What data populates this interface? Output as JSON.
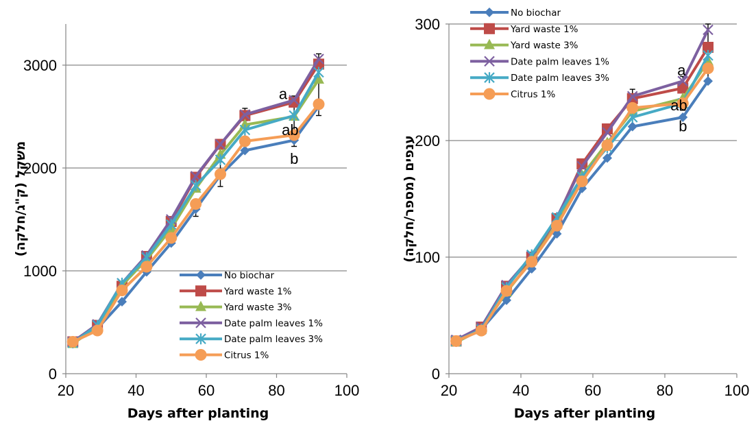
{
  "colors": {
    "No biochar": "#4a7ebb",
    "Yard waste 1%": "#be4b48",
    "Yard waste 3%": "#98b954",
    "Date palm leaves 1%": "#7d60a0",
    "Date palm leaves 3%": "#46aac5",
    "Citrus 1%": "#f59d56"
  },
  "chart_data": [
    {
      "type": "line",
      "title": "",
      "xlabel": "Days after planting",
      "ylabel": "משקל (ק\"ג/חלקה)",
      "xlim": [
        20,
        100
      ],
      "ylim": [
        0,
        3400
      ],
      "xticks": [
        "20",
        "40",
        "60",
        "80",
        "100"
      ],
      "yticks": [
        "0",
        "1000",
        "2000",
        "3000"
      ],
      "grid": "horizontal major gridlines",
      "legend_position": "bottom-right",
      "x": [
        22,
        29,
        36,
        43,
        50,
        57,
        64,
        71,
        85,
        92
      ],
      "series": [
        {
          "name": "No biochar",
          "marker": "diamond",
          "values": [
            300,
            440,
            700,
            990,
            1270,
            1600,
            1930,
            2170,
            2270,
            2600
          ]
        },
        {
          "name": "Yard waste 1%",
          "marker": "square",
          "values": [
            310,
            470,
            850,
            1140,
            1480,
            1910,
            2230,
            2510,
            2640,
            3010
          ]
        },
        {
          "name": "Yard waste 3%",
          "marker": "triangle",
          "values": [
            290,
            460,
            860,
            1110,
            1410,
            1800,
            2130,
            2420,
            2500,
            2860
          ]
        },
        {
          "name": "Date palm leaves 1%",
          "marker": "x",
          "values": [
            310,
            480,
            880,
            1150,
            1500,
            1920,
            2230,
            2520,
            2660,
            3060
          ]
        },
        {
          "name": "Date palm leaves 3%",
          "marker": "star",
          "values": [
            300,
            470,
            880,
            1130,
            1450,
            1830,
            2080,
            2370,
            2510,
            2930
          ]
        },
        {
          "name": "Citrus 1%",
          "marker": "circle",
          "values": [
            310,
            420,
            810,
            1040,
            1320,
            1650,
            1940,
            2260,
            2320,
            2620
          ]
        }
      ],
      "error_bars": [
        {
          "x": 57,
          "low": 1530,
          "high": 1670
        },
        {
          "x": 64,
          "low": 1820,
          "high": 2060
        },
        {
          "x": 71,
          "low": 2460,
          "high": 2580
        },
        {
          "x": 85,
          "low": 2210,
          "high": 2700
        },
        {
          "x": 92,
          "low": 2510,
          "high": 3110
        }
      ],
      "annotations": [
        {
          "text": "a",
          "x": 83,
          "y": 2670
        },
        {
          "text": "ab",
          "x": 85,
          "y": 2320
        },
        {
          "text": "b",
          "x": 85,
          "y": 2040
        }
      ]
    },
    {
      "type": "line",
      "title": "",
      "xlabel": "Days after planting",
      "ylabel": "ענפים (מספר/חלקה)",
      "xlim": [
        20,
        100
      ],
      "ylim": [
        0,
        300
      ],
      "xticks": [
        "20",
        "40",
        "60",
        "80",
        "100"
      ],
      "yticks": [
        "0",
        "100",
        "200",
        "300"
      ],
      "grid": "horizontal major gridlines",
      "legend_position": "top-left",
      "x": [
        22,
        29,
        36,
        43,
        50,
        57,
        64,
        71,
        85,
        92
      ],
      "series": [
        {
          "name": "No biochar",
          "marker": "diamond",
          "values": [
            27,
            38,
            63,
            90,
            120,
            159,
            185,
            212,
            220,
            251
          ]
        },
        {
          "name": "Yard waste 1%",
          "marker": "square",
          "values": [
            28,
            40,
            75,
            100,
            133,
            180,
            210,
            236,
            245,
            280
          ]
        },
        {
          "name": "Yard waste 3%",
          "marker": "triangle",
          "values": [
            27,
            38,
            70,
            97,
            128,
            170,
            198,
            225,
            236,
            268
          ]
        },
        {
          "name": "Date palm leaves 1%",
          "marker": "x",
          "values": [
            29,
            40,
            76,
            101,
            134,
            178,
            207,
            238,
            251,
            295
          ]
        },
        {
          "name": "Date palm leaves 3%",
          "marker": "star",
          "values": [
            28,
            38,
            74,
            102,
            134,
            169,
            194,
            220,
            232,
            273
          ]
        },
        {
          "name": "Citrus 1%",
          "marker": "circle",
          "values": [
            28,
            37,
            71,
            96,
            127,
            165,
            196,
            228,
            232,
            262
          ]
        }
      ],
      "error_bars": [
        {
          "x": 71,
          "low": 225,
          "high": 244
        },
        {
          "x": 85,
          "low": 226,
          "high": 255
        },
        {
          "x": 92,
          "low": 250,
          "high": 300
        }
      ],
      "annotations": [
        {
          "text": "a",
          "x": 85,
          "y": 256
        },
        {
          "text": "ab",
          "x": 85,
          "y": 226
        },
        {
          "text": "b",
          "x": 85,
          "y": 208
        }
      ]
    }
  ]
}
